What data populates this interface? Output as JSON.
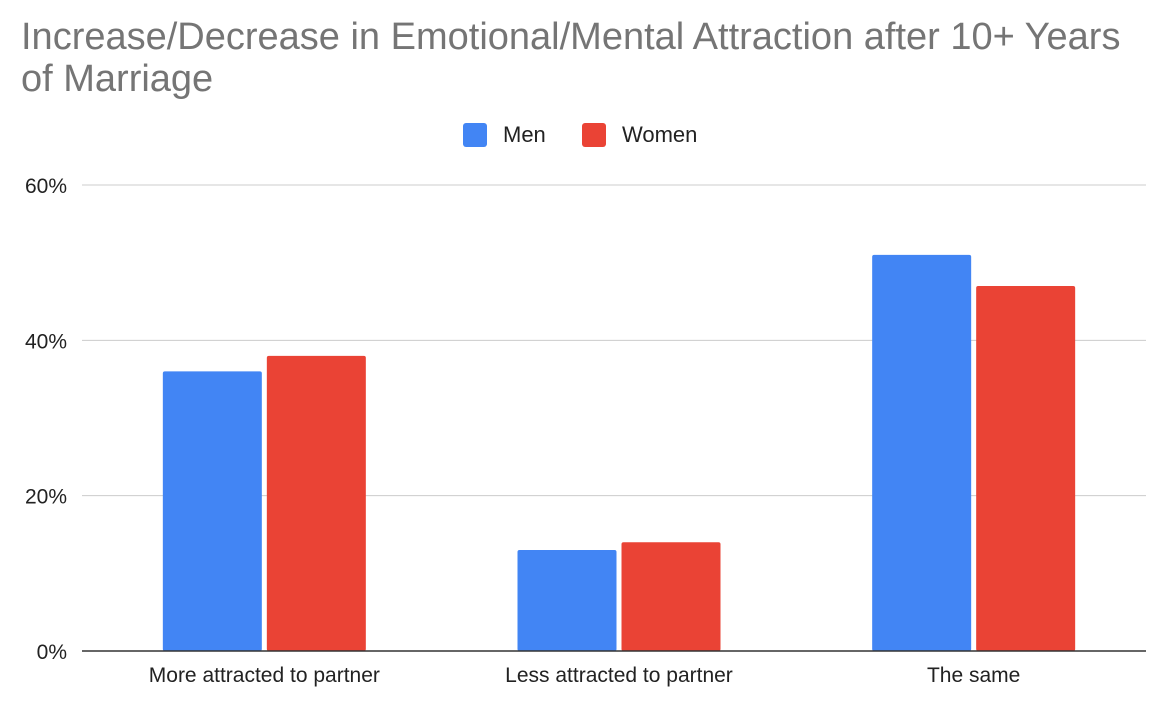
{
  "chart_data": {
    "type": "bar",
    "title": "Increase/Decrease in Emotional/Mental Attraction after 10+ Years of Marriage",
    "categories": [
      "More attracted to partner",
      "Less attracted to partner",
      "The same"
    ],
    "series": [
      {
        "name": "Men",
        "color": "#4285f4",
        "values": [
          36,
          13,
          51
        ]
      },
      {
        "name": "Women",
        "color": "#ea4335",
        "values": [
          38,
          14,
          47
        ]
      }
    ],
    "ylim": [
      0,
      60
    ],
    "yticks": [
      0,
      20,
      40,
      60
    ],
    "ytick_labels": [
      "0%",
      "20%",
      "40%",
      "60%"
    ],
    "xlabel": "",
    "ylabel": "",
    "grid": true,
    "legend_position": "top"
  }
}
